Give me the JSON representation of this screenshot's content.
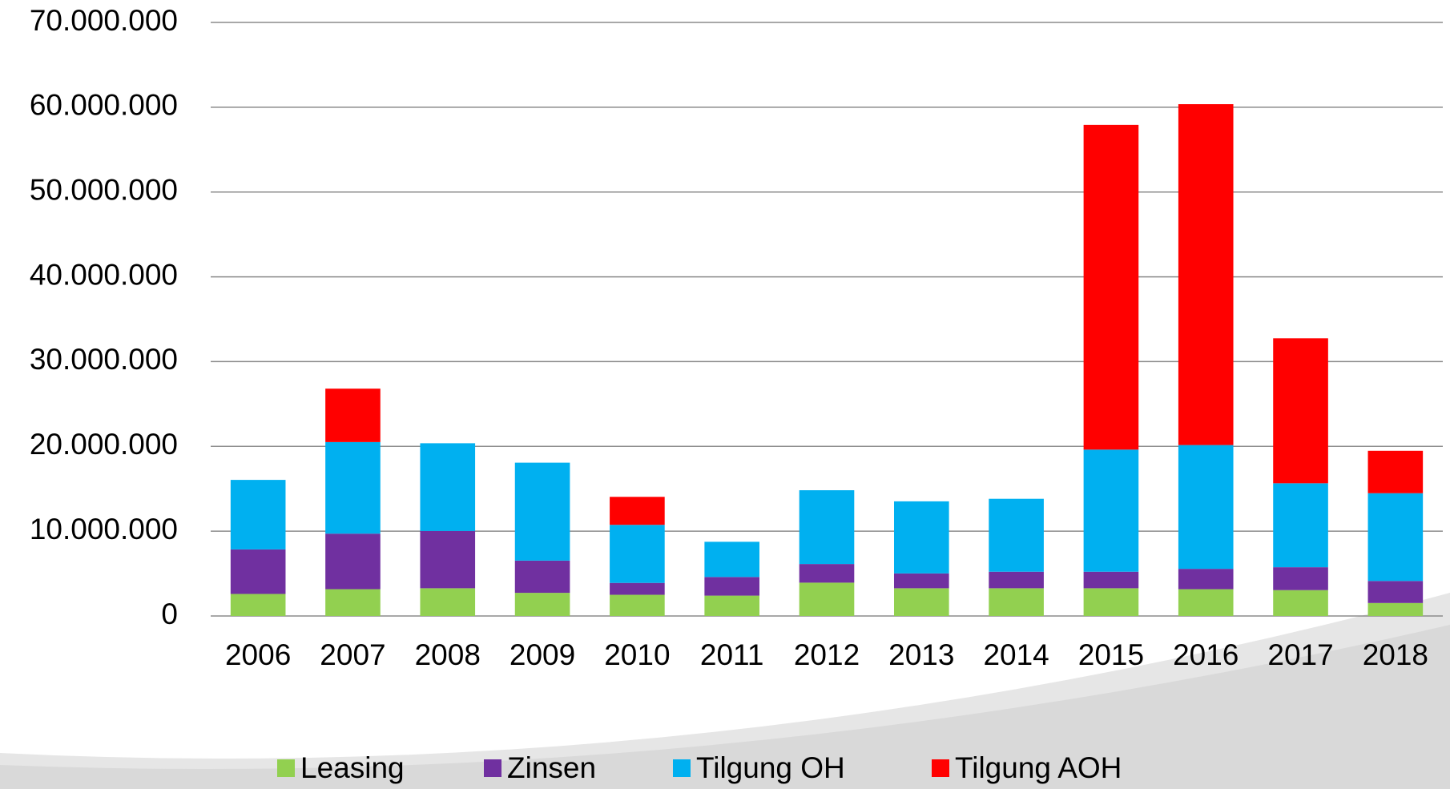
{
  "chart_data": {
    "type": "stacked-bar",
    "categories": [
      "2006",
      "2007",
      "2008",
      "2009",
      "2010",
      "2011",
      "2012",
      "2013",
      "2014",
      "2015",
      "2016",
      "2017",
      "2018"
    ],
    "series": [
      {
        "name": "Leasing",
        "color": "#92d050",
        "values": [
          2600000,
          3160000,
          3270000,
          2730000,
          2500000,
          2400000,
          3930000,
          3270000,
          3270000,
          3270000,
          3160000,
          3050000,
          1530000
        ]
      },
      {
        "name": "Zinsen",
        "color": "#7030a0",
        "values": [
          5250000,
          6550000,
          6750000,
          3800000,
          1400000,
          2200000,
          2200000,
          1750000,
          1950000,
          1950000,
          2400000,
          2700000,
          2600000
        ]
      },
      {
        "name": "Tilgung OH",
        "color": "#00b0f0",
        "values": [
          8200000,
          10800000,
          10350000,
          11550000,
          6850000,
          4150000,
          8700000,
          8500000,
          8600000,
          14400000,
          14600000,
          9900000,
          10350000
        ]
      },
      {
        "name": "Tilgung AOH",
        "color": "#ff0000",
        "values": [
          0,
          6300000,
          0,
          0,
          3300000,
          0,
          0,
          0,
          0,
          38300000,
          40200000,
          17100000,
          5000000
        ]
      }
    ],
    "ylim": [
      0,
      70000000
    ],
    "yticks": [
      0,
      {
        "value": 10000000,
        "label": "10.000.000"
      },
      {
        "value": 20000000,
        "label": "20.000.000"
      },
      {
        "value": 30000000,
        "label": "30.000.000"
      },
      {
        "value": 40000000,
        "label": "40.000.000"
      },
      {
        "value": 50000000,
        "label": "50.000.000"
      },
      {
        "value": 60000000,
        "label": "60.000.000"
      },
      {
        "value": 70000000,
        "label": "70.000.000"
      }
    ],
    "grid": true,
    "legend": "bottom"
  }
}
